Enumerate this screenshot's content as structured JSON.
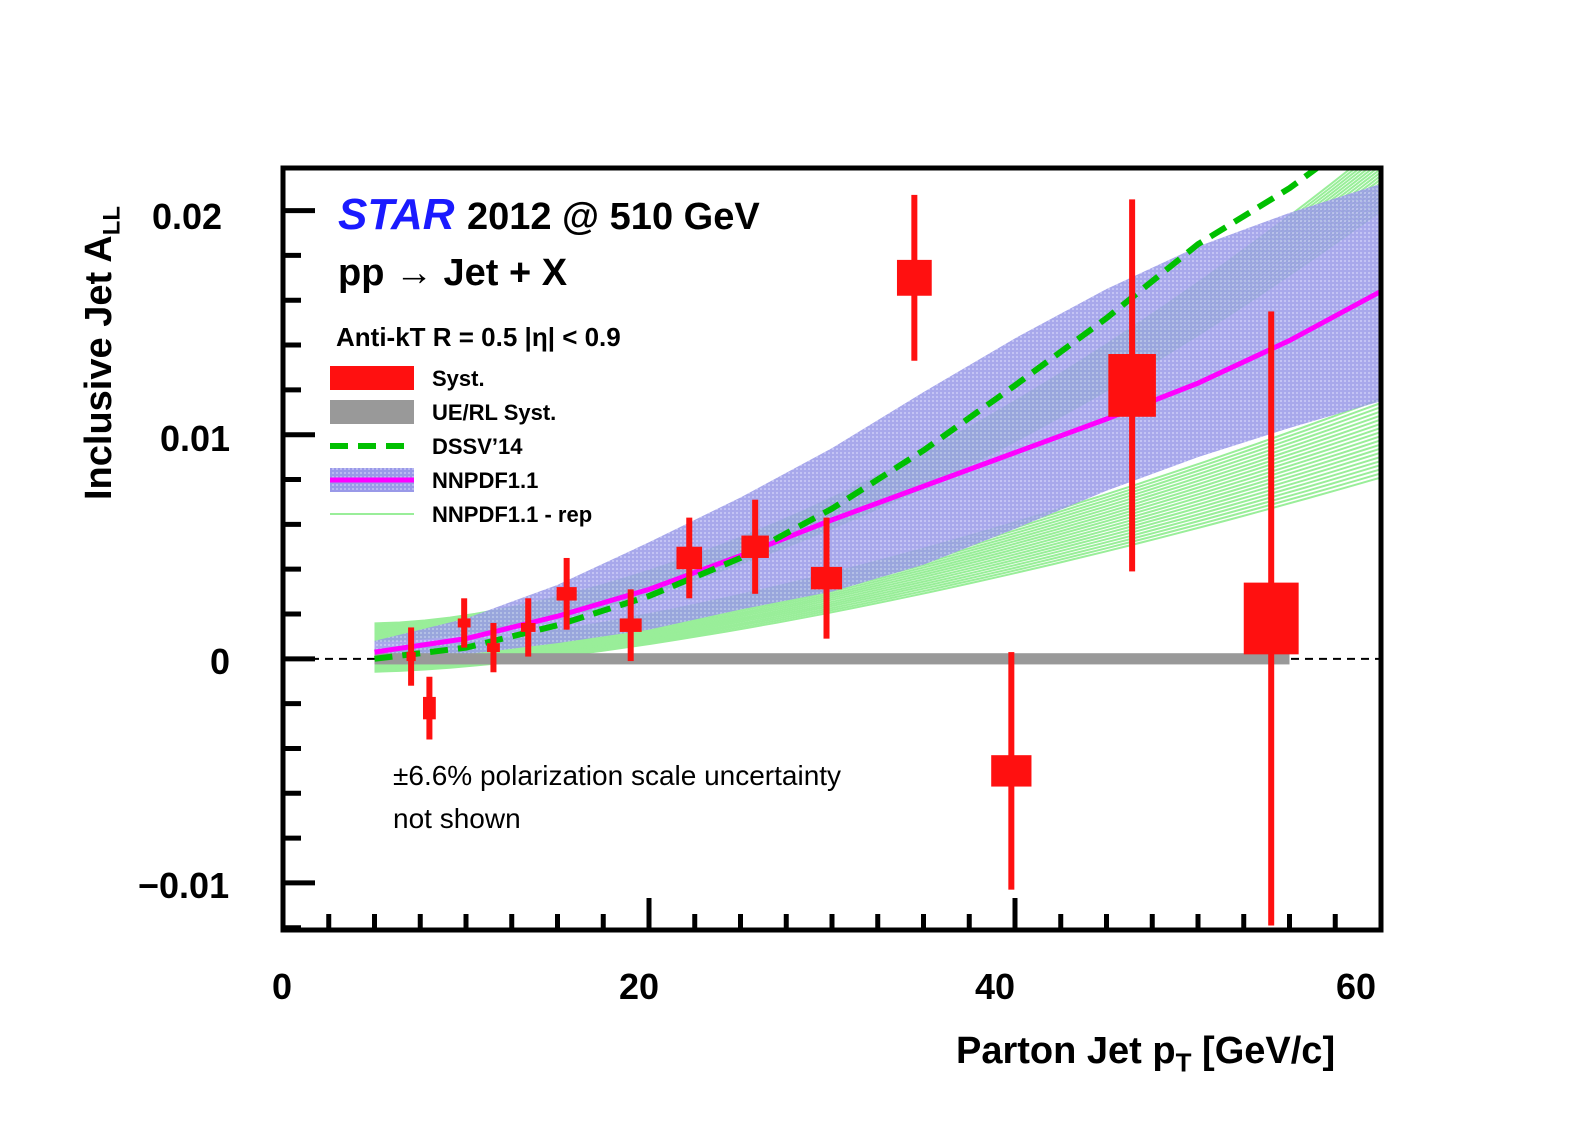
{
  "chart_data": {
    "type": "scatter",
    "title_experiment": "STAR",
    "title_run": "2012 @ 510 GeV",
    "process": "pp → Jet + X",
    "cuts": "Anti-kT R = 0.5 |η| < 0.9",
    "xlabel": "Parton Jet p",
    "xlabel_sub": "T",
    "xlabel_unit": " [GeV/c]",
    "ylabel": "Inclusive Jet A",
    "ylabel_sub": "LL",
    "xlim": [
      0,
      60
    ],
    "ylim": [
      -0.0121,
      0.0219
    ],
    "x_ticks": [
      "0",
      "20",
      "40",
      "60"
    ],
    "y_ticks": [
      "0.02",
      "0.01",
      "0",
      "−0.01"
    ],
    "annotation": [
      "±6.6% polarization scale uncertainty",
      "not shown"
    ],
    "legend": [
      "Syst.",
      "UE/RL Syst.",
      "DSSV’14",
      "NNPDF1.1",
      "NNPDF1.1 - rep"
    ],
    "colors": {
      "data": "#ff1010",
      "ue_band": "#999999",
      "dssv": "#00c000",
      "nnpdf": "#ff00ff",
      "nnpdf_band": "#8888dd",
      "rep": "#99ee99"
    },
    "points": [
      {
        "x": 7.0,
        "y": 0.0001,
        "stat": 0.0013,
        "sys_w": 0.25,
        "sys_h": 0.0002
      },
      {
        "x": 8.0,
        "y": -0.0022,
        "stat": 0.0014,
        "sys_w": 0.35,
        "sys_h": 0.0005
      },
      {
        "x": 9.9,
        "y": 0.0016,
        "stat": 0.0011,
        "sys_w": 0.35,
        "sys_h": 0.0002
      },
      {
        "x": 11.5,
        "y": 0.0005,
        "stat": 0.0011,
        "sys_w": 0.35,
        "sys_h": 0.0002
      },
      {
        "x": 13.4,
        "y": 0.0014,
        "stat": 0.0013,
        "sys_w": 0.4,
        "sys_h": 0.0002
      },
      {
        "x": 15.5,
        "y": 0.0029,
        "stat": 0.0016,
        "sys_w": 0.55,
        "sys_h": 0.0003
      },
      {
        "x": 19.0,
        "y": 0.0015,
        "stat": 0.0016,
        "sys_w": 0.6,
        "sys_h": 0.0003
      },
      {
        "x": 22.2,
        "y": 0.0045,
        "stat": 0.0018,
        "sys_w": 0.7,
        "sys_h": 0.0005
      },
      {
        "x": 25.8,
        "y": 0.005,
        "stat": 0.0021,
        "sys_w": 0.75,
        "sys_h": 0.0005
      },
      {
        "x": 29.7,
        "y": 0.0036,
        "stat": 0.0027,
        "sys_w": 0.85,
        "sys_h": 0.0005
      },
      {
        "x": 34.5,
        "y": 0.017,
        "stat": 0.0037,
        "sys_w": 0.95,
        "sys_h": 0.0008
      },
      {
        "x": 39.8,
        "y": -0.005,
        "stat": 0.0053,
        "sys_w": 1.1,
        "sys_h": 0.0007
      },
      {
        "x": 46.4,
        "y": 0.0122,
        "stat": 0.0083,
        "sys_w": 1.3,
        "sys_h": 0.0014
      },
      {
        "x": 54.0,
        "y": 0.0018,
        "stat": 0.0137,
        "sys_w": 1.5,
        "sys_h": 0.0016
      }
    ],
    "ue_band": {
      "x": [
        5,
        55
      ],
      "y0": 0.0,
      "half_height": 0.00025
    },
    "dssv14": {
      "x": [
        5,
        10,
        15,
        20,
        25,
        30,
        35,
        40,
        45,
        50,
        55,
        57
      ],
      "y": [
        0.0,
        0.0005,
        0.0015,
        0.0028,
        0.0045,
        0.0067,
        0.0093,
        0.0122,
        0.0152,
        0.0185,
        0.021,
        0.0222
      ]
    },
    "nnpdf11": {
      "x": [
        5,
        10,
        15,
        20,
        25,
        30,
        35,
        40,
        45,
        50,
        55,
        60
      ],
      "y": [
        0.0003,
        0.0009,
        0.0019,
        0.0031,
        0.0046,
        0.0062,
        0.0077,
        0.0092,
        0.0107,
        0.0123,
        0.0142,
        0.0164
      ]
    },
    "nnpdf11_band": {
      "x": [
        5,
        10,
        15,
        20,
        25,
        30,
        35,
        40,
        45,
        50,
        55,
        60
      ],
      "lo": [
        -0.0002,
        0.0002,
        0.0007,
        0.0013,
        0.0022,
        0.003,
        0.0042,
        0.0058,
        0.0075,
        0.009,
        0.0103,
        0.0115
      ],
      "hi": [
        0.0008,
        0.0018,
        0.0033,
        0.0052,
        0.0072,
        0.0094,
        0.0119,
        0.0143,
        0.0165,
        0.0184,
        0.0199,
        0.0212
      ]
    },
    "nnpdf11_rep": {
      "x": [
        5,
        60
      ],
      "low_end": [
        0.008,
        0.0116
      ],
      "high_end": [
        0.02,
        0.0219
      ],
      "low_start": [
        -0.0006,
        0.0004
      ],
      "high_start": [
        0.0008,
        0.0016
      ]
    },
    "grid": false
  }
}
